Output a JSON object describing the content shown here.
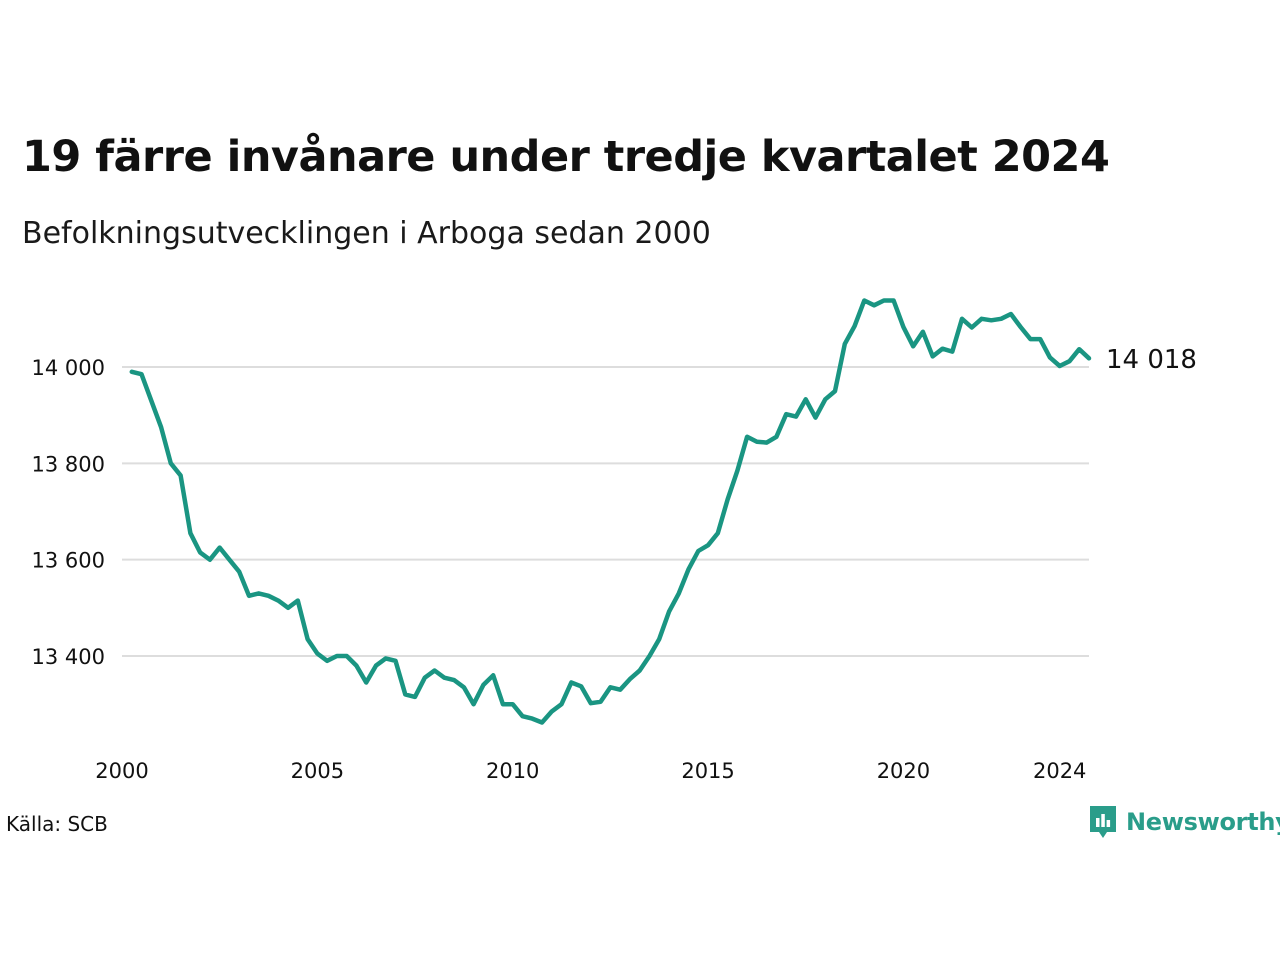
{
  "title": "19 färre invånare under tredje kvartalet 2024",
  "subtitle": "Befolkningsutvecklingen i Arboga sedan 2000",
  "source": "Källa: SCB",
  "brand": {
    "name": "Newsworthy",
    "icon": "newsworthy-logo-icon"
  },
  "colors": {
    "line": "#1a9582",
    "grid": "#dddddd",
    "brand": "#2a9d8a"
  },
  "chart_data": {
    "type": "line",
    "xlabel": "",
    "ylabel": "",
    "x_ticks": [
      2000,
      2005,
      2010,
      2015,
      2020,
      2024
    ],
    "x_tick_labels": [
      "2000",
      "2005",
      "2010",
      "2015",
      "2020",
      "2024"
    ],
    "y_ticks": [
      13400,
      13600,
      13800,
      14000
    ],
    "y_tick_labels": [
      "13 400",
      "13 600",
      "13 800",
      "14 000"
    ],
    "xlim": [
      2000,
      2024.75
    ],
    "ylim": [
      13250,
      14150
    ],
    "grid": true,
    "end_label": "14 018",
    "series": [
      {
        "x": [
          2000.25,
          2000.5,
          2000.75,
          2001.0,
          2001.25,
          2001.5,
          2001.75,
          2002.0,
          2002.25,
          2002.5,
          2002.75,
          2003.0,
          2003.25,
          2003.5,
          2003.75,
          2004.0,
          2004.25,
          2004.5,
          2004.75,
          2005.0,
          2005.25,
          2005.5,
          2005.75,
          2006.0,
          2006.25,
          2006.5,
          2006.75,
          2007.0,
          2007.25,
          2007.5,
          2007.75,
          2008.0,
          2008.25,
          2008.5,
          2008.75,
          2009.0,
          2009.25,
          2009.5,
          2009.75,
          2010.0,
          2010.25,
          2010.5,
          2010.75,
          2011.0,
          2011.25,
          2011.5,
          2011.75,
          2012.0,
          2012.25,
          2012.5,
          2012.75,
          2013.0,
          2013.25,
          2013.5,
          2013.75,
          2014.0,
          2014.25,
          2014.5,
          2014.75,
          2015.0,
          2015.25,
          2015.5,
          2015.75,
          2016.0,
          2016.25,
          2016.5,
          2016.75,
          2017.0,
          2017.25,
          2017.5,
          2017.75,
          2018.0,
          2018.25,
          2018.5,
          2018.75,
          2019.0,
          2019.25,
          2019.5,
          2019.75,
          2020.0,
          2020.25,
          2020.5,
          2020.75,
          2021.0,
          2021.25,
          2021.5,
          2021.75,
          2022.0,
          2022.25,
          2022.5,
          2022.75,
          2023.0,
          2023.25,
          2023.5,
          2023.75,
          2024.0,
          2024.25,
          2024.5,
          2024.75
        ],
        "values": [
          13990,
          13985,
          13930,
          13875,
          13800,
          13775,
          13655,
          13615,
          13600,
          13625,
          13600,
          13575,
          13525,
          13530,
          13525,
          13515,
          13500,
          13515,
          13435,
          13405,
          13390,
          13400,
          13400,
          13380,
          13345,
          13380,
          13395,
          13390,
          13320,
          13315,
          13355,
          13370,
          13355,
          13350,
          13335,
          13300,
          13340,
          13360,
          13300,
          13300,
          13275,
          13270,
          13262,
          13285,
          13300,
          13345,
          13337,
          13302,
          13305,
          13335,
          13330,
          13352,
          13370,
          13400,
          13435,
          13492,
          13530,
          13580,
          13618,
          13630,
          13655,
          13725,
          13785,
          13855,
          13845,
          13843,
          13855,
          13902,
          13897,
          13933,
          13895,
          13933,
          13950,
          14048,
          14085,
          14138,
          14128,
          14138,
          14138,
          14083,
          14043,
          14073,
          14022,
          14038,
          14032,
          14100,
          14082,
          14100,
          14097,
          14100,
          14110,
          14083,
          14058,
          14058,
          14020,
          14002,
          14012,
          14037,
          14018
        ]
      }
    ]
  }
}
